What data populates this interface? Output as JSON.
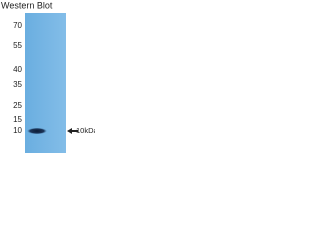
{
  "title": "Western Blot",
  "markers": [
    "70",
    "55",
    "40",
    "35",
    "25",
    "15",
    "10"
  ],
  "band_label": "10kDa"
}
